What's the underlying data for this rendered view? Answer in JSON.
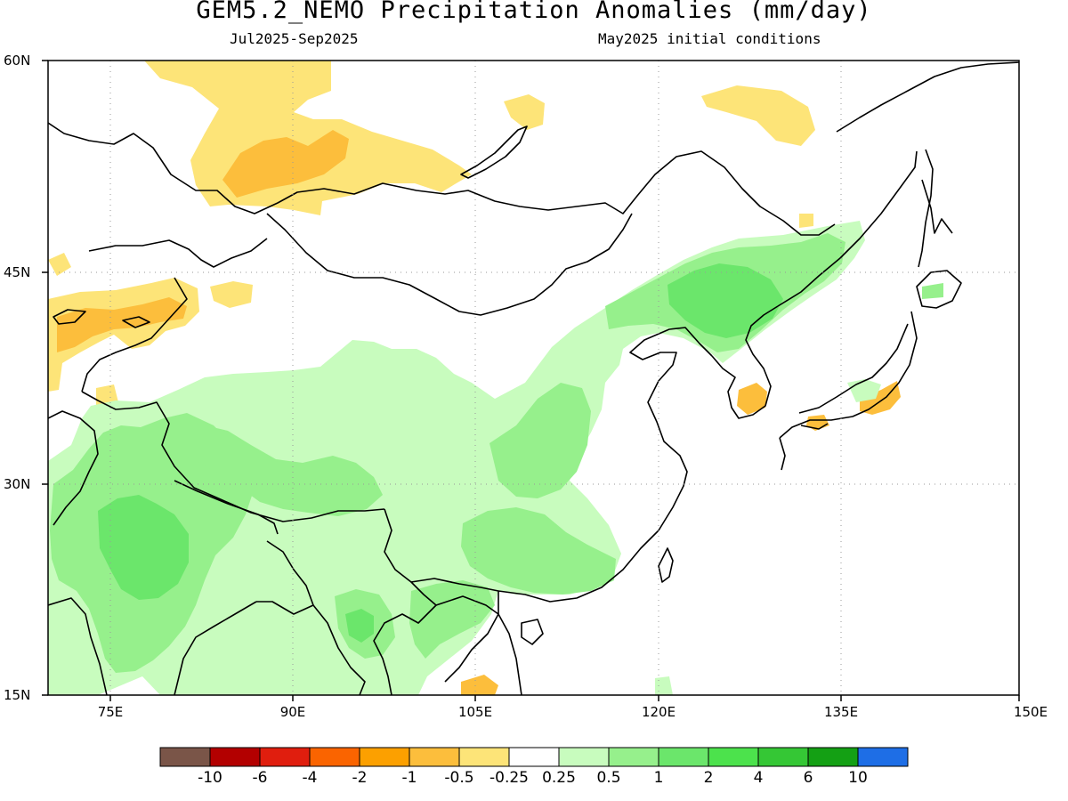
{
  "title": "GEM5.2_NEMO Precipitation Anomalies (mm/day)",
  "period": "Jul2025-Sep2025",
  "initial_conditions": "May2025 initial conditions",
  "map": {
    "lon_range": [
      70,
      150
    ],
    "lat_range": [
      15,
      60
    ],
    "lat_ticks": [
      "60N",
      "45N",
      "30N",
      "15N"
    ],
    "lon_ticks": [
      "75E",
      "90E",
      "105E",
      "120E",
      "135E",
      "150E"
    ],
    "grid": "dotted"
  },
  "colorbar": {
    "colors": [
      "#7a5548",
      "#b30000",
      "#e01e0e",
      "#fa6400",
      "#fca000",
      "#fcbe3c",
      "#fde478",
      "#ffffff",
      "#c8fcbe",
      "#96f08c",
      "#6be66b",
      "#4ce24c",
      "#35c735",
      "#14a014",
      "#1e6ee6"
    ],
    "labels": [
      "-10",
      "-6",
      "-4",
      "-2",
      "-1",
      "-0.5",
      "-0.25",
      "0.25",
      "0.5",
      "1",
      "2",
      "4",
      "6",
      "10"
    ]
  },
  "colors": {
    "dry_light": "#fde478",
    "dry_medium": "#fcbe3c",
    "wet_light": "#c8fcbe",
    "wet_medium": "#96f08c",
    "wet_strong": "#6be66b"
  }
}
